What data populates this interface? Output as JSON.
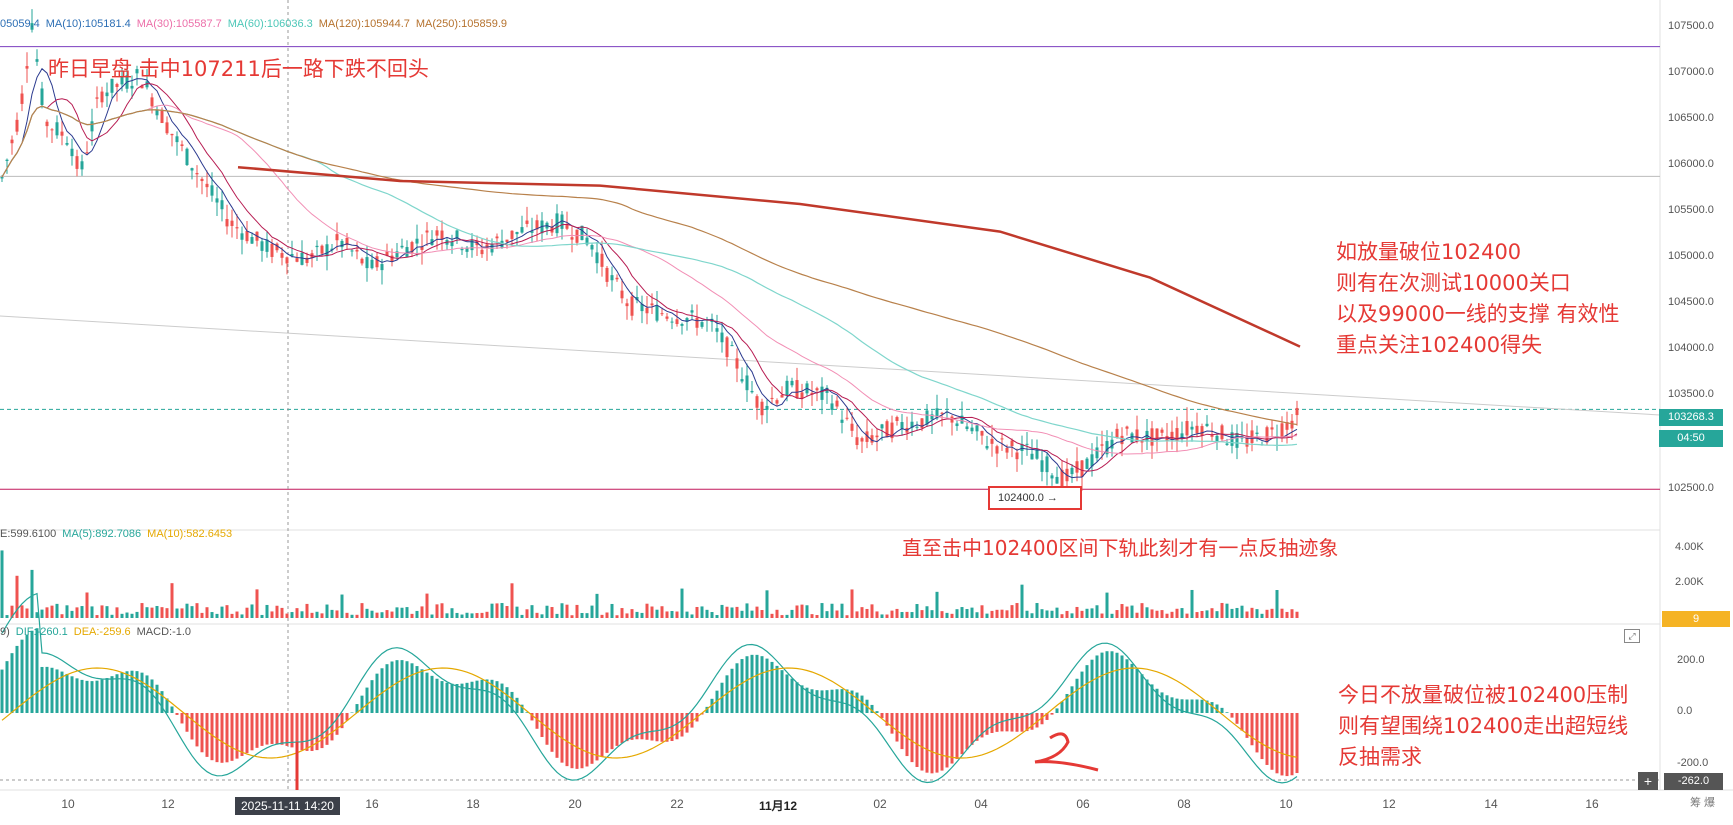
{
  "legends": {
    "ma": [
      {
        "text": "05059.4",
        "color": "#2d6fb5"
      },
      {
        "text": "MA(10):105181.4",
        "color": "#2d6fb5"
      },
      {
        "text": "MA(30):105587.7",
        "color": "#ec6fa9"
      },
      {
        "text": "MA(60):106036.3",
        "color": "#4cc7b8"
      },
      {
        "text": "MA(120):105944.7",
        "color": "#b5722e"
      },
      {
        "text": "MA(250):105859.9",
        "color": "#b5722e"
      }
    ],
    "ma_colors": {
      "ma5": "#2b3a8f",
      "ma10": "#b71c52",
      "ma30": "#f28fb5",
      "ma60": "#7fd6cc",
      "ma120": "#b8814b",
      "ma250": "#c0392b"
    },
    "vol": [
      {
        "text": "E:599.6100",
        "color": "#555555"
      },
      {
        "text": "MA(5):892.7086",
        "color": "#26a69a"
      },
      {
        "text": "MA(10):582.6453",
        "color": "#e5a800"
      }
    ],
    "macd": [
      {
        "text": "9)",
        "color": "#555555"
      },
      {
        "text": "DIF:-260.1",
        "color": "#26a69a"
      },
      {
        "text": "DEA:-259.6",
        "color": "#e5a800"
      },
      {
        "text": "MACD:-1.0",
        "color": "#555555"
      }
    ],
    "high_marker": "107478.0"
  },
  "annotations": {
    "top_note": "昨日早盘 击中107211后一路下跌不回头",
    "right_note": [
      "如放量破位102400",
      "则有在次测试10000关口",
      "以及99000一线的支撑 有效性",
      "重点关注102400得失"
    ],
    "mid_note": "直至击中102400区间下轨此刻才有一点反抽迹象",
    "bottom_note": [
      "今日不放量破位被102400压制",
      "则有望围绕102400走出超短线",
      "反抽需求"
    ],
    "support_box": "102400.0 →",
    "color": "#e53935"
  },
  "price_axis": {
    "labels": [
      "107500.0",
      "107000.0",
      "106500.0",
      "106000.0",
      "105500.0",
      "105000.0",
      "104500.0",
      "104000.0",
      "103500.0",
      "102500.0"
    ],
    "last_price": "103268.3",
    "countdown": "04:50"
  },
  "volume_axis": {
    "labels": [
      "4.00K",
      "2.00K"
    ],
    "tag": "9"
  },
  "macd_axis": {
    "labels": [
      "200.0",
      "0.0",
      "-200.0"
    ],
    "tag": "-262.0"
  },
  "time_axis": {
    "labels": [
      "10",
      "12",
      "16",
      "18",
      "20",
      "22",
      "11月12",
      "02",
      "04",
      "06",
      "08",
      "10",
      "12",
      "14",
      "16"
    ],
    "crosshair": "2025-11-11 14:20"
  },
  "buttons": {
    "plus": "+",
    "expand": "⤢"
  },
  "corner_text": "筹 爆",
  "colors": {
    "up": "#26a69a",
    "down": "#ef5350",
    "grid": "#f0f0f0",
    "line_purple": "#7b3fbf",
    "line_magenta": "#c2185b"
  }
}
